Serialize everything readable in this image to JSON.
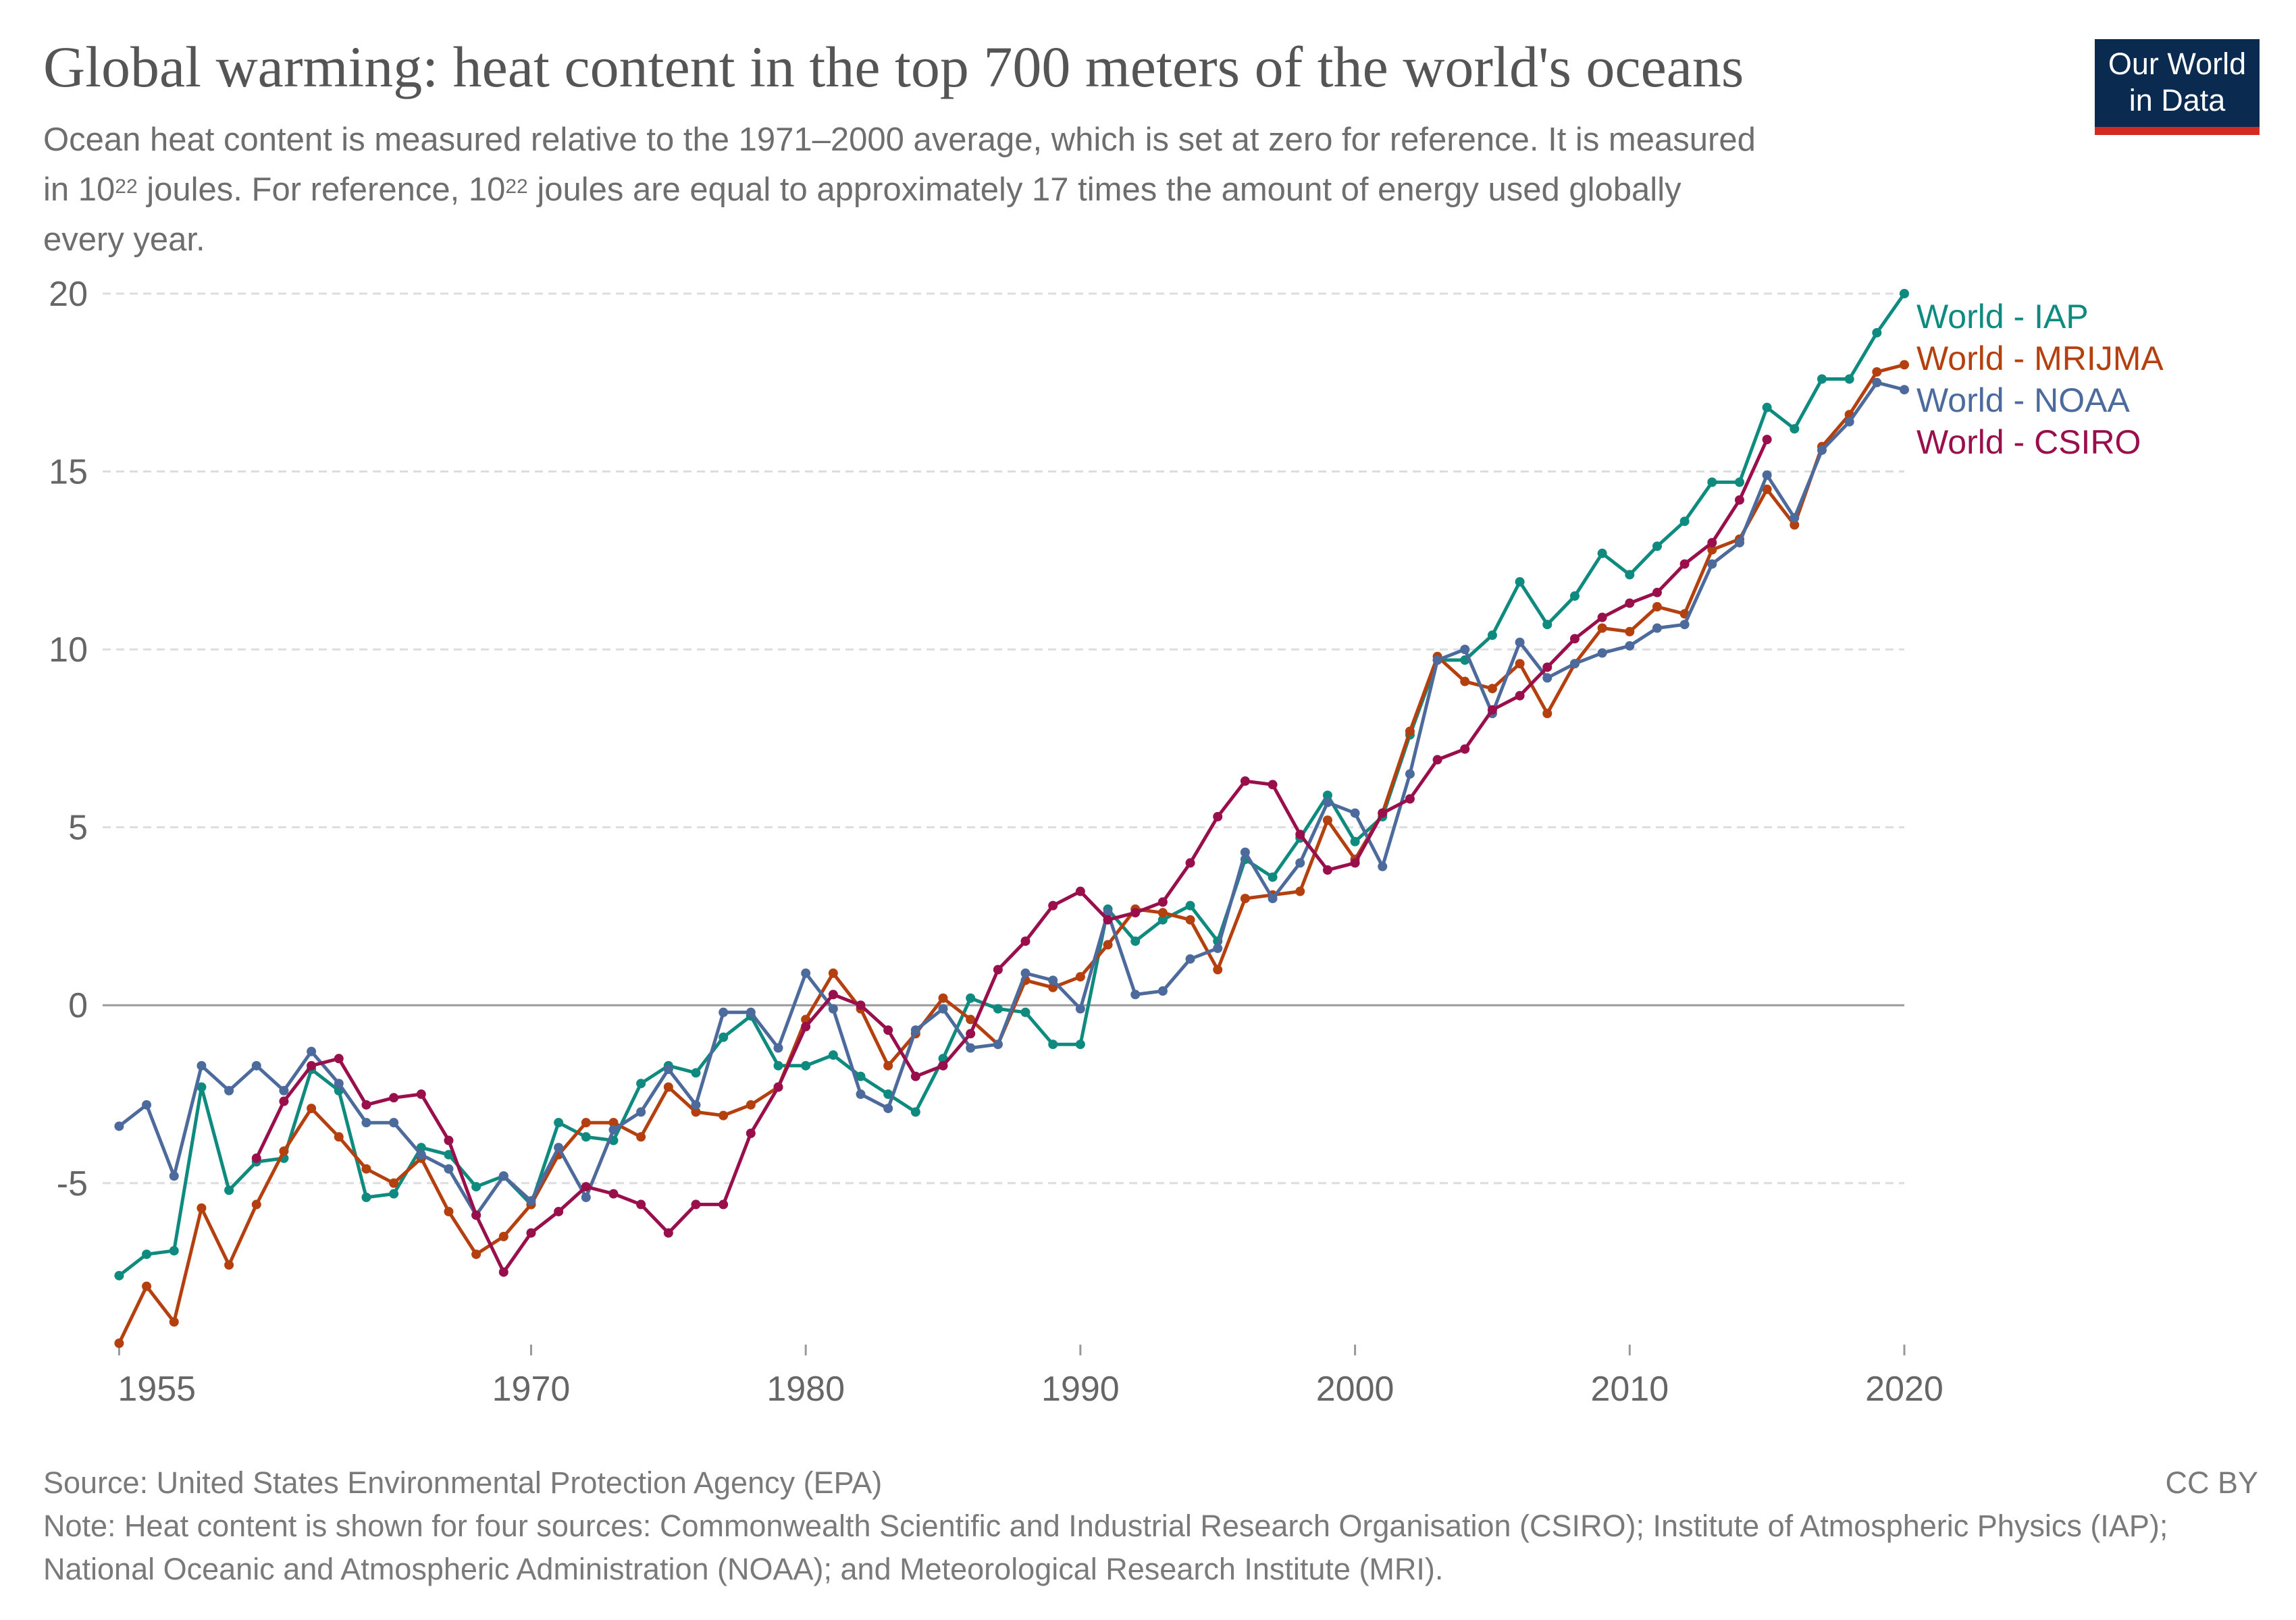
{
  "title": "Global warming: heat content in the top 700 meters of the world's oceans",
  "subtitle": {
    "line1": "Ocean heat content is measured relative to the 1971–2000 average, which is set at zero for reference. It is measured",
    "line2_pre": "in 10",
    "line2_sup": "22",
    "line2_mid": " joules. For reference, 10",
    "line2_sup2": "22",
    "line2_post": " joules are equal to approximately 17 times the amount of energy used globally",
    "line3": "every year."
  },
  "logo": {
    "line1": "Our World",
    "line2": "in Data",
    "bg_color": "#0b2a4f",
    "bar_color": "#d42b21"
  },
  "footer": {
    "source": "Source: United States Environmental Protection Agency (EPA)",
    "license": "CC BY",
    "note": "Note: Heat content is shown for four sources: Commonwealth Scientific and Industrial Research Organisation (CSIRO); Institute of Atmospheric Physics (IAP); National Oceanic and Atmospheric Administration (NOAA); and Meteorological Research Institute (MRI)."
  },
  "chart_data": {
    "type": "line",
    "title": "Global warming: heat content in the top 700 meters of the world's oceans",
    "xlabel": "",
    "ylabel": "",
    "xlim": [
      1955,
      2020
    ],
    "ylim": [
      -9.5,
      20
    ],
    "x_ticks": [
      1955,
      1970,
      1980,
      1990,
      2000,
      2010,
      2020
    ],
    "y_ticks": [
      -5,
      0,
      5,
      10,
      15,
      20
    ],
    "y_tick_labels": [
      "-5",
      "0",
      "5",
      "10",
      "15",
      "20"
    ],
    "grid": "horizontal dashed",
    "legend_placement": "right, at line ends",
    "series": [
      {
        "name": "World - IAP",
        "color": "#0f8a7f",
        "x": [
          1955,
          1956,
          1957,
          1958,
          1959,
          1960,
          1961,
          1962,
          1963,
          1964,
          1965,
          1966,
          1967,
          1968,
          1969,
          1970,
          1971,
          1972,
          1973,
          1974,
          1975,
          1976,
          1977,
          1978,
          1979,
          1980,
          1981,
          1982,
          1983,
          1984,
          1985,
          1986,
          1987,
          1988,
          1989,
          1990,
          1991,
          1992,
          1993,
          1994,
          1995,
          1996,
          1997,
          1998,
          1999,
          2000,
          2001,
          2002,
          2003,
          2004,
          2005,
          2006,
          2007,
          2008,
          2009,
          2010,
          2011,
          2012,
          2013,
          2014,
          2015,
          2016,
          2017,
          2018,
          2019,
          2020
        ],
        "y": [
          -7.6,
          -7.0,
          -6.9,
          -2.3,
          -5.2,
          -4.4,
          -4.3,
          -1.8,
          -2.4,
          -5.4,
          -5.3,
          -4.0,
          -4.2,
          -5.1,
          -4.8,
          -5.6,
          -3.3,
          -3.7,
          -3.8,
          -2.2,
          -1.7,
          -1.9,
          -0.9,
          -0.3,
          -1.7,
          -1.7,
          -1.4,
          -2.0,
          -2.5,
          -3.0,
          -1.5,
          0.2,
          -0.1,
          -0.2,
          -1.1,
          -1.1,
          2.7,
          1.8,
          2.4,
          2.8,
          1.8,
          4.1,
          3.6,
          4.7,
          5.9,
          4.6,
          5.3,
          7.6,
          9.7,
          9.7,
          10.4,
          11.9,
          10.7,
          11.5,
          12.7,
          12.1,
          12.9,
          13.6,
          14.7,
          14.7,
          16.8,
          16.2,
          17.6,
          17.6,
          18.9,
          20.0
        ]
      },
      {
        "name": "World - MRIJMA",
        "color": "#b5400f",
        "x": [
          1955,
          1956,
          1957,
          1958,
          1959,
          1960,
          1961,
          1962,
          1963,
          1964,
          1965,
          1966,
          1967,
          1968,
          1969,
          1970,
          1971,
          1972,
          1973,
          1974,
          1975,
          1976,
          1977,
          1978,
          1979,
          1980,
          1981,
          1982,
          1983,
          1984,
          1985,
          1986,
          1987,
          1988,
          1989,
          1990,
          1991,
          1992,
          1993,
          1994,
          1995,
          1996,
          1997,
          1998,
          1999,
          2000,
          2001,
          2002,
          2003,
          2004,
          2005,
          2006,
          2007,
          2008,
          2009,
          2010,
          2011,
          2012,
          2013,
          2014,
          2015,
          2016,
          2017,
          2018,
          2019,
          2020
        ],
        "y": [
          -9.5,
          -7.9,
          -8.9,
          -5.7,
          -7.3,
          -5.6,
          -4.1,
          -2.9,
          -3.7,
          -4.6,
          -5.0,
          -4.3,
          -5.8,
          -7.0,
          -6.5,
          -5.6,
          -4.2,
          -3.3,
          -3.3,
          -3.7,
          -2.3,
          -3.0,
          -3.1,
          -2.8,
          -2.3,
          -0.4,
          0.9,
          -0.1,
          -1.7,
          -0.8,
          0.2,
          -0.4,
          -1.1,
          0.7,
          0.5,
          0.8,
          1.7,
          2.7,
          2.6,
          2.4,
          1.0,
          3.0,
          3.1,
          3.2,
          5.2,
          4.1,
          5.4,
          7.7,
          9.8,
          9.1,
          8.9,
          9.6,
          8.2,
          9.6,
          10.6,
          10.5,
          11.2,
          11.0,
          12.8,
          13.1,
          14.5,
          13.5,
          15.7,
          16.6,
          17.8,
          18.0
        ]
      },
      {
        "name": "World - NOAA",
        "color": "#4c6a9c",
        "x": [
          1955,
          1956,
          1957,
          1958,
          1959,
          1960,
          1961,
          1962,
          1963,
          1964,
          1965,
          1966,
          1967,
          1968,
          1969,
          1970,
          1971,
          1972,
          1973,
          1974,
          1975,
          1976,
          1977,
          1978,
          1979,
          1980,
          1981,
          1982,
          1983,
          1984,
          1985,
          1986,
          1987,
          1988,
          1989,
          1990,
          1991,
          1992,
          1993,
          1994,
          1995,
          1996,
          1997,
          1998,
          1999,
          2000,
          2001,
          2002,
          2003,
          2004,
          2005,
          2006,
          2007,
          2008,
          2009,
          2010,
          2011,
          2012,
          2013,
          2014,
          2015,
          2016,
          2017,
          2018,
          2019,
          2020
        ],
        "y": [
          -3.4,
          -2.8,
          -4.8,
          -1.7,
          -2.4,
          -1.7,
          -2.4,
          -1.3,
          -2.2,
          -3.3,
          -3.3,
          -4.2,
          -4.6,
          -5.9,
          -4.8,
          -5.5,
          -4.0,
          -5.4,
          -3.5,
          -3.0,
          -1.8,
          -2.8,
          -0.2,
          -0.2,
          -1.2,
          0.9,
          -0.1,
          -2.5,
          -2.9,
          -0.7,
          -0.1,
          -1.2,
          -1.1,
          0.9,
          0.7,
          -0.1,
          2.6,
          0.3,
          0.4,
          1.3,
          1.6,
          4.3,
          3.0,
          4.0,
          5.7,
          5.4,
          3.9,
          6.5,
          9.7,
          10.0,
          8.2,
          10.2,
          9.2,
          9.6,
          9.9,
          10.1,
          10.6,
          10.7,
          12.4,
          13.0,
          14.9,
          13.7,
          15.6,
          16.4,
          17.5,
          17.3
        ]
      },
      {
        "name": "World - CSIRO",
        "color": "#990f4c",
        "x": [
          1960,
          1961,
          1962,
          1963,
          1964,
          1965,
          1966,
          1967,
          1968,
          1969,
          1970,
          1971,
          1972,
          1973,
          1974,
          1975,
          1976,
          1977,
          1978,
          1979,
          1980,
          1981,
          1982,
          1983,
          1984,
          1985,
          1986,
          1987,
          1988,
          1989,
          1990,
          1991,
          1992,
          1993,
          1994,
          1995,
          1996,
          1997,
          1998,
          1999,
          2000,
          2001,
          2002,
          2003,
          2004,
          2005,
          2006,
          2007,
          2008,
          2009,
          2010,
          2011,
          2012,
          2013,
          2014,
          2015
        ],
        "y": [
          -4.3,
          -2.7,
          -1.7,
          -1.5,
          -2.8,
          -2.6,
          -2.5,
          -3.8,
          -5.9,
          -7.5,
          -6.4,
          -5.8,
          -5.1,
          -5.3,
          -5.6,
          -6.4,
          -5.6,
          -5.6,
          -3.6,
          -2.3,
          -0.6,
          0.3,
          0.0,
          -0.7,
          -2.0,
          -1.7,
          -0.8,
          1.0,
          1.8,
          2.8,
          3.2,
          2.4,
          2.6,
          2.9,
          4.0,
          5.3,
          6.3,
          6.2,
          4.8,
          3.8,
          4.0,
          5.4,
          5.8,
          6.9,
          7.2,
          8.3,
          8.7,
          9.5,
          10.3,
          10.9,
          11.3,
          11.6,
          12.4,
          13.0,
          14.2,
          15.9
        ]
      }
    ]
  }
}
